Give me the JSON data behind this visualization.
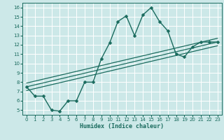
{
  "xlabel": "Humidex (Indice chaleur)",
  "bg_color": "#cce8e8",
  "line_color": "#1a6b5e",
  "grid_color": "#ffffff",
  "xlim": [
    -0.5,
    23.5
  ],
  "ylim": [
    4.5,
    16.5
  ],
  "xticks": [
    0,
    1,
    2,
    3,
    4,
    5,
    6,
    7,
    8,
    9,
    10,
    11,
    12,
    13,
    14,
    15,
    16,
    17,
    18,
    19,
    20,
    21,
    22,
    23
  ],
  "yticks": [
    5,
    6,
    7,
    8,
    9,
    10,
    11,
    12,
    13,
    14,
    15,
    16
  ],
  "main_x": [
    0,
    1,
    2,
    3,
    4,
    5,
    6,
    7,
    8,
    9,
    10,
    11,
    12,
    13,
    14,
    15,
    16,
    17,
    18,
    19,
    20,
    21,
    22,
    23
  ],
  "main_y": [
    7.5,
    6.5,
    6.5,
    5.0,
    4.9,
    6.0,
    6.0,
    8.0,
    8.0,
    10.5,
    12.2,
    14.5,
    15.1,
    13.0,
    15.2,
    16.0,
    14.5,
    13.5,
    11.0,
    10.7,
    11.8,
    12.3,
    12.3,
    12.3
  ],
  "reg_x0": 0,
  "reg_x1": 23,
  "reg_y0": 7.5,
  "reg_y1": 12.3,
  "reg_offsets": [
    0.0,
    0.4,
    -0.4
  ],
  "xlabel_fontsize": 6.0,
  "tick_fontsize": 5.0,
  "linewidth": 1.0,
  "markersize": 2.5
}
